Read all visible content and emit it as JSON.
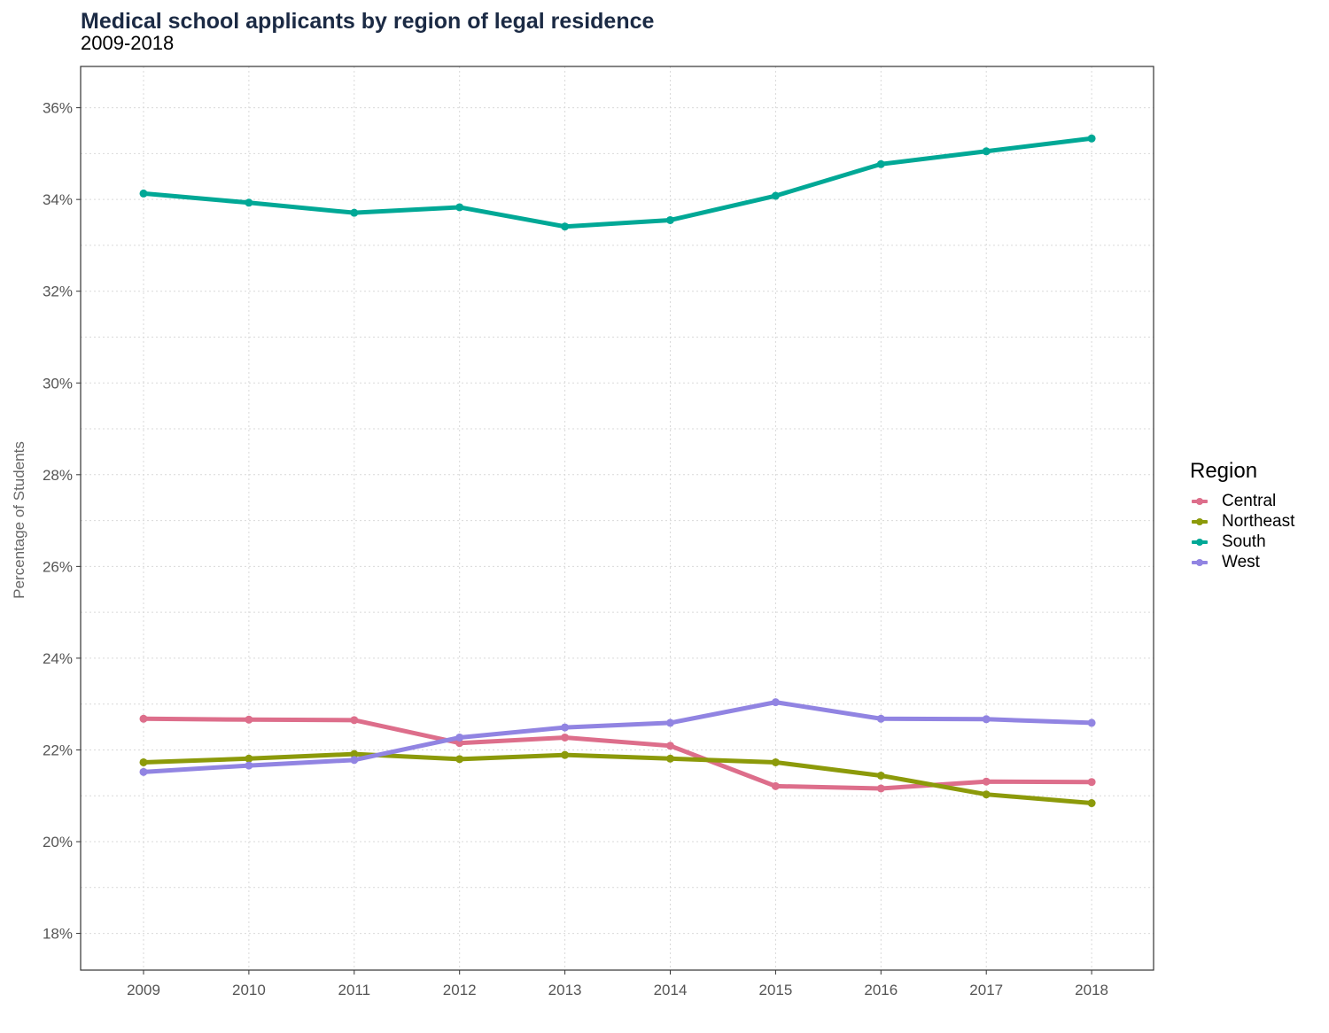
{
  "title": "Medical school applicants by region of legal residence",
  "subtitle": "2009-2018",
  "chart_data": {
    "type": "line",
    "title": "Medical school applicants by region of legal residence",
    "subtitle": "2009-2018",
    "xlabel": "",
    "ylabel": "Percentage of Students",
    "x": [
      2009,
      2010,
      2011,
      2012,
      2013,
      2014,
      2015,
      2016,
      2017,
      2018
    ],
    "x_tick_labels": [
      "2009",
      "2010",
      "2011",
      "2012",
      "2013",
      "2014",
      "2015",
      "2016",
      "2017",
      "2018"
    ],
    "y_ticks": [
      18,
      20,
      22,
      24,
      26,
      28,
      30,
      32,
      34,
      36
    ],
    "y_tick_labels": [
      "18%",
      "20%",
      "22%",
      "24%",
      "26%",
      "28%",
      "30%",
      "32%",
      "34%",
      "36%"
    ],
    "ylim": [
      17.2,
      36.9
    ],
    "grid": true,
    "legend_title": "Region",
    "legend_position": "right",
    "series": [
      {
        "name": "Central",
        "color": "#dd6e8b",
        "values": [
          22.68,
          22.66,
          22.65,
          22.15,
          22.27,
          22.09,
          21.21,
          21.16,
          21.31,
          21.3
        ]
      },
      {
        "name": "Northeast",
        "color": "#8c9a0a",
        "values": [
          21.73,
          21.81,
          21.91,
          21.8,
          21.89,
          21.81,
          21.73,
          21.44,
          21.03,
          20.84
        ]
      },
      {
        "name": "South",
        "color": "#00a896",
        "values": [
          34.13,
          33.93,
          33.71,
          33.83,
          33.41,
          33.55,
          34.08,
          34.77,
          35.05,
          35.33
        ]
      },
      {
        "name": "West",
        "color": "#9184e2",
        "values": [
          21.52,
          21.66,
          21.78,
          22.27,
          22.49,
          22.59,
          23.04,
          22.68,
          22.67,
          22.59
        ]
      }
    ]
  }
}
